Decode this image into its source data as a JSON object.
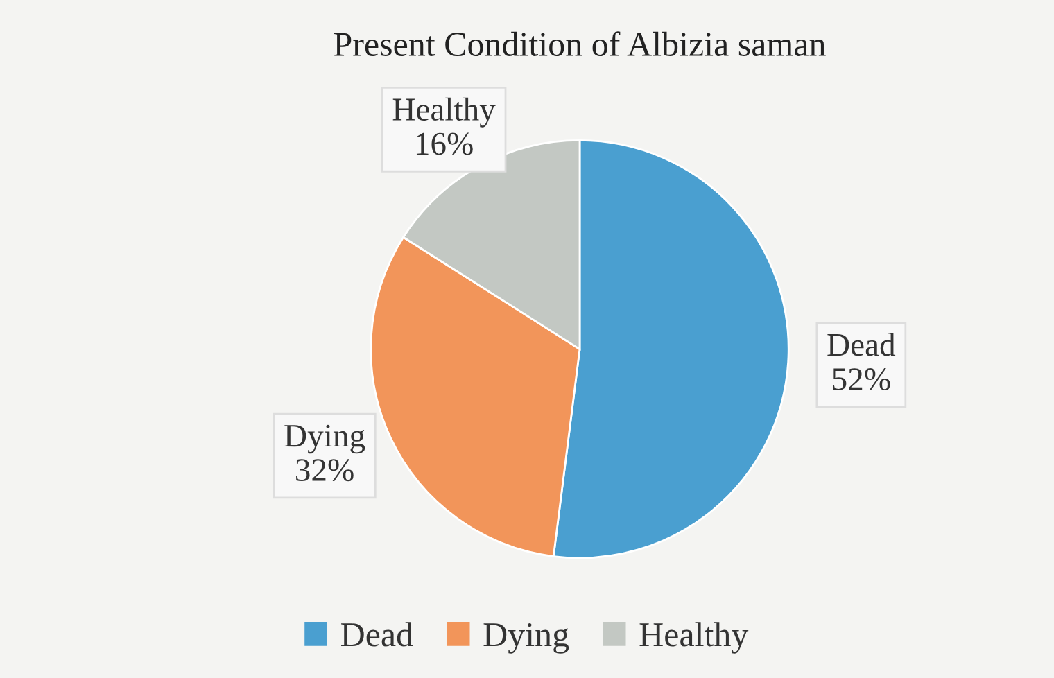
{
  "chart_data": {
    "type": "pie",
    "title": "Present Condition of Albizia saman",
    "categories": [
      "Dead",
      "Dying",
      "Healthy"
    ],
    "values": [
      52,
      32,
      16
    ],
    "colors": [
      "#4a9fd0",
      "#f2955a",
      "#c3c8c3"
    ],
    "value_labels": [
      "52%",
      "32%",
      "16%"
    ],
    "legend": "bottom"
  }
}
